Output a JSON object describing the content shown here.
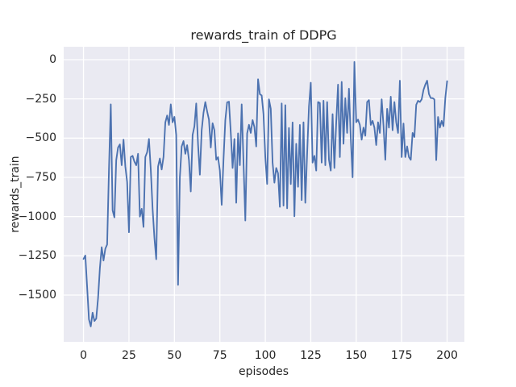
{
  "figure": {
    "background": "#ffffff"
  },
  "chart_data": {
    "type": "line",
    "title": "rewards_train of DDPG",
    "xlabel": "episodes",
    "ylabel": "rewards_train",
    "xlim": [
      -10.9,
      209.5
    ],
    "ylim": [
      -1798,
      82
    ],
    "xticks": [
      0,
      25,
      50,
      75,
      100,
      125,
      150,
      175,
      200
    ],
    "xticklabels": [
      "0",
      "25",
      "50",
      "75",
      "100",
      "125",
      "150",
      "175",
      "200"
    ],
    "yticks": [
      0,
      -250,
      -500,
      -750,
      -1000,
      -1250,
      -1500
    ],
    "yticklabels": [
      "0",
      "−250",
      "−500",
      "−750",
      "−1000",
      "−1250",
      "−1500"
    ],
    "grid": true,
    "grid_color": "#ffffff",
    "plot_bg": "#eaeaf2",
    "text_color": "#262626",
    "legend": "none",
    "series": [
      {
        "name": "rewards_train",
        "color": "#4c72b0",
        "x": [
          0,
          1,
          2,
          3,
          4,
          5,
          6,
          7,
          8,
          9,
          10,
          11,
          12,
          13,
          14,
          15,
          16,
          17,
          18,
          19,
          20,
          21,
          22,
          23,
          24,
          25,
          26,
          27,
          28,
          29,
          30,
          31,
          32,
          33,
          34,
          35,
          36,
          37,
          38,
          39,
          40,
          41,
          42,
          43,
          44,
          45,
          46,
          47,
          48,
          49,
          50,
          51,
          52,
          53,
          54,
          55,
          56,
          57,
          58,
          59,
          60,
          61,
          62,
          63,
          64,
          65,
          66,
          67,
          68,
          69,
          70,
          71,
          72,
          73,
          74,
          75,
          76,
          77,
          78,
          79,
          80,
          81,
          82,
          83,
          84,
          85,
          86,
          87,
          88,
          89,
          90,
          91,
          92,
          93,
          94,
          95,
          96,
          97,
          98,
          99,
          100,
          101,
          102,
          103,
          104,
          105,
          106,
          107,
          108,
          109,
          110,
          111,
          112,
          113,
          114,
          115,
          116,
          117,
          118,
          119,
          120,
          121,
          122,
          123,
          124,
          125,
          126,
          127,
          128,
          129,
          130,
          131,
          132,
          133,
          134,
          135,
          136,
          137,
          138,
          139,
          140,
          141,
          142,
          143,
          144,
          145,
          146,
          147,
          148,
          149,
          150,
          151,
          152,
          153,
          154,
          155,
          156,
          157,
          158,
          159,
          160,
          161,
          162,
          163,
          164,
          165,
          166,
          167,
          168,
          169,
          170,
          171,
          172,
          173,
          174,
          175,
          176,
          177,
          178,
          179,
          180,
          181,
          182,
          183,
          184,
          185,
          186,
          187,
          188,
          189,
          190,
          191,
          192,
          193,
          194,
          195,
          196,
          197,
          198,
          199,
          200
        ],
        "values": [
          -1270,
          -1248,
          -1450,
          -1655,
          -1700,
          -1612,
          -1665,
          -1650,
          -1520,
          -1330,
          -1195,
          -1280,
          -1205,
          -1178,
          -700,
          -285,
          -960,
          -1005,
          -640,
          -560,
          -540,
          -673,
          -510,
          -680,
          -780,
          -1100,
          -620,
          -613,
          -650,
          -673,
          -600,
          -1000,
          -950,
          -1066,
          -620,
          -590,
          -505,
          -700,
          -950,
          -1135,
          -1272,
          -681,
          -630,
          -700,
          -620,
          -400,
          -356,
          -416,
          -285,
          -399,
          -365,
          -480,
          -1435,
          -750,
          -553,
          -519,
          -600,
          -545,
          -640,
          -840,
          -480,
          -425,
          -279,
          -540,
          -733,
          -450,
          -339,
          -270,
          -330,
          -382,
          -560,
          -405,
          -450,
          -638,
          -621,
          -707,
          -925,
          -638,
          -385,
          -272,
          -268,
          -465,
          -690,
          -505,
          -912,
          -470,
          -673,
          -285,
          -655,
          -1025,
          -470,
          -415,
          -467,
          -385,
          -430,
          -553,
          -125,
          -220,
          -228,
          -347,
          -621,
          -792,
          -253,
          -313,
          -656,
          -784,
          -690,
          -724,
          -938,
          -279,
          -930,
          -290,
          -947,
          -435,
          -793,
          -400,
          -998,
          -536,
          -810,
          -416,
          -895,
          -399,
          -912,
          -600,
          -300,
          -147,
          -656,
          -613,
          -707,
          -270,
          -276,
          -656,
          -262,
          -673,
          -270,
          -638,
          -707,
          -347,
          -690,
          -400,
          -159,
          -621,
          -142,
          -536,
          -245,
          -467,
          -185,
          -500,
          -750,
          -15,
          -399,
          -382,
          -416,
          -510,
          -433,
          -485,
          -270,
          -258,
          -416,
          -390,
          -433,
          -544,
          -399,
          -467,
          -253,
          -420,
          -638,
          -313,
          -433,
          -236,
          -450,
          -270,
          -399,
          -467,
          -134,
          -621,
          -407,
          -621,
          -553,
          -621,
          -638,
          -467,
          -493,
          -288,
          -262,
          -270,
          -253,
          -193,
          -159,
          -134,
          -219,
          -245,
          -245,
          -253,
          -640,
          -365,
          -433,
          -390,
          -424,
          -245,
          -137
        ]
      }
    ]
  }
}
